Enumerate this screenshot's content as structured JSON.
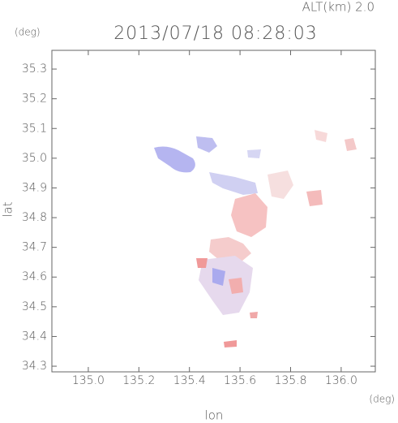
{
  "chart_data": {
    "type": "map",
    "title": "2013/07/18 08:28:03",
    "subtitle": "ALT(km) 2.0",
    "x_label": "lon",
    "y_label": "lat",
    "x_unit": "(deg)",
    "y_unit": "(deg)",
    "xlim": [
      134.856,
      136.135
    ],
    "ylim": [
      34.281,
      35.363
    ],
    "xticks": [
      {
        "value": 135,
        "label": "135.0"
      },
      135.2,
      135.4,
      135.6,
      135.8,
      {
        "value": 136,
        "label": "136.0"
      }
    ],
    "yticks": [
      34.3,
      34.4,
      34.5,
      34.6,
      34.7,
      34.8,
      34.9,
      {
        "value": 35,
        "label": "35.0"
      },
      35.1,
      35.2,
      35.3
    ]
  }
}
